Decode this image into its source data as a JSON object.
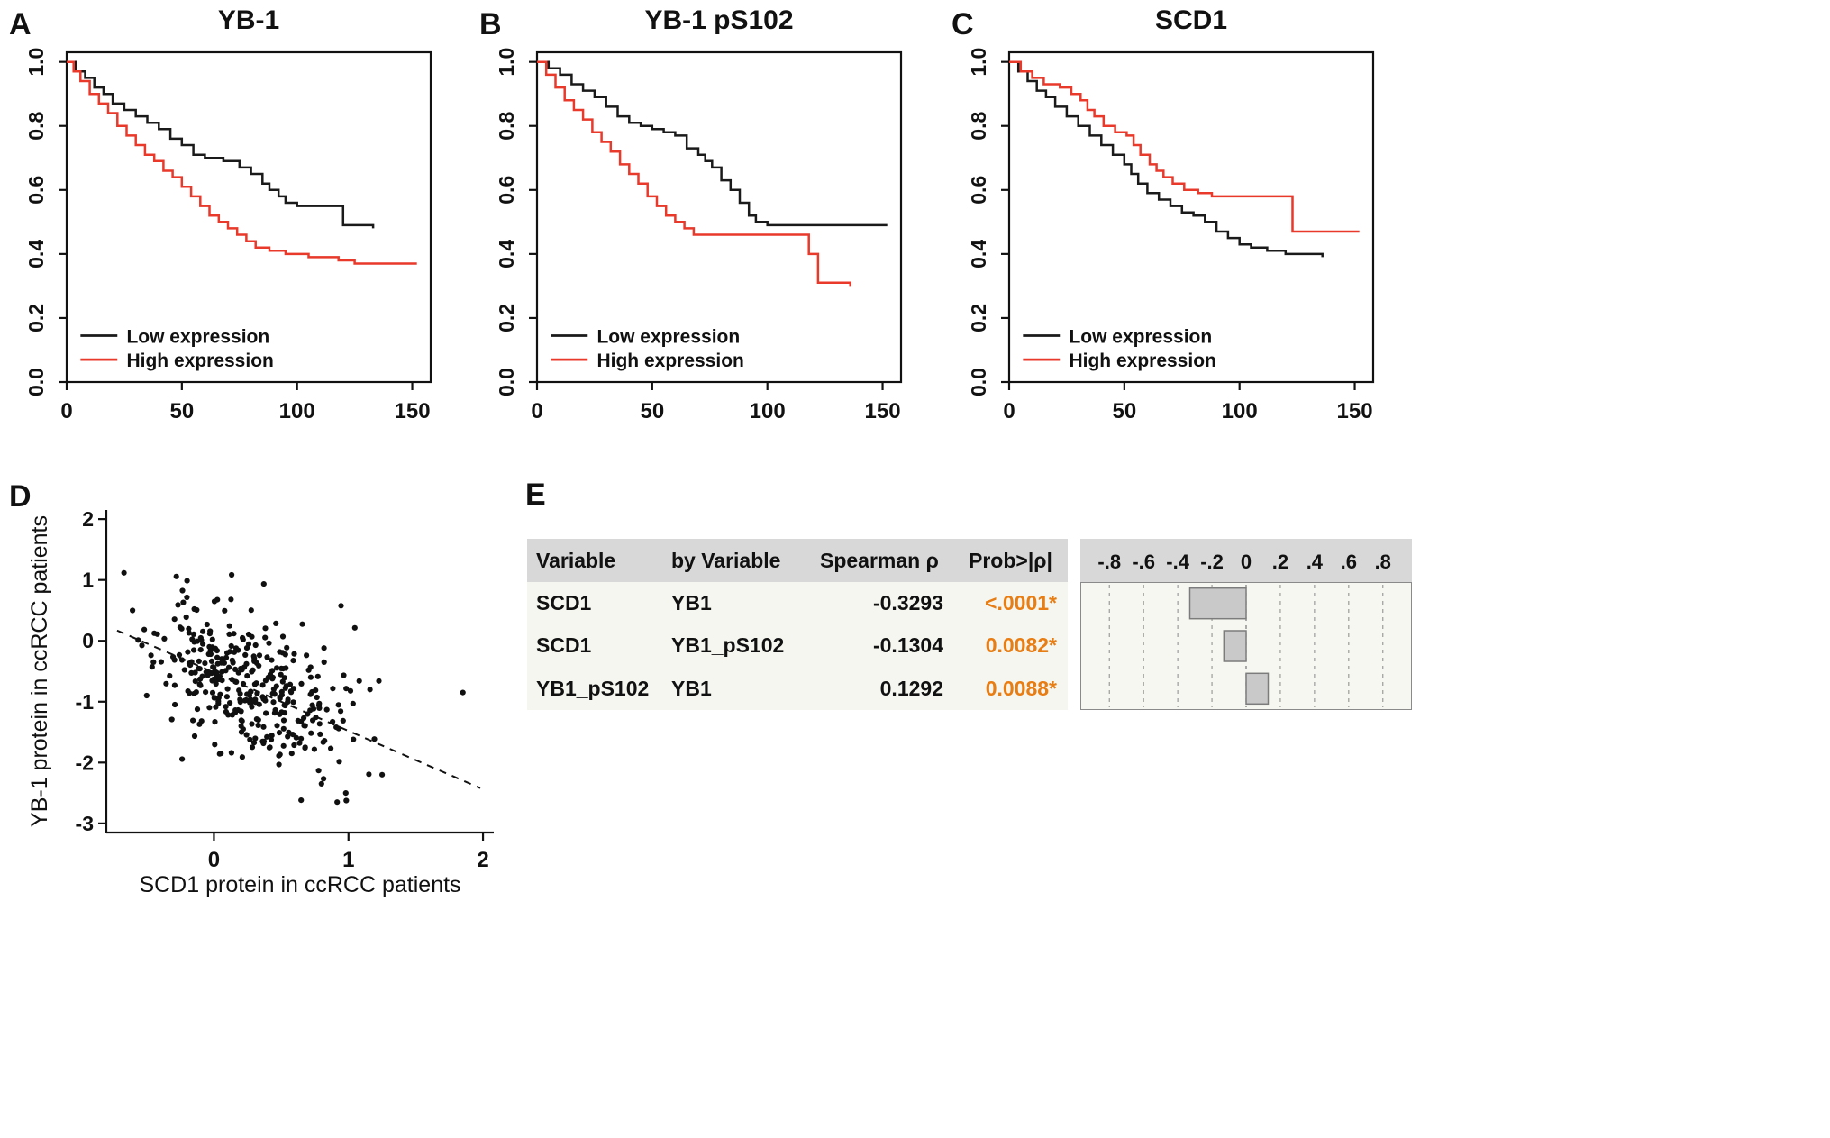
{
  "figure": {
    "background": "#ffffff",
    "panels": {
      "a": {
        "label": "A"
      },
      "b": {
        "label": "B"
      },
      "c": {
        "label": "C"
      },
      "d": {
        "label": "D"
      },
      "e": {
        "label": "E"
      }
    }
  },
  "colors": {
    "low_expression": "#1a1a1a",
    "high_expression": "#e8392b",
    "prob_highlight": "#e87d13",
    "bar_fill": "#c9c9c9",
    "bar_stroke": "#7c7c7c",
    "table_header_bg": "#d8d8d8",
    "table_body_bg": "#f6f6f0",
    "plot_area_bg": "#f7f7f1"
  },
  "chart_data": [
    {
      "id": "km-yb1",
      "type": "line",
      "render": "km-step",
      "title": "YB-1",
      "xlabel": "",
      "ylabel": "",
      "xlim": [
        0,
        158
      ],
      "ylim": [
        0,
        1.03
      ],
      "xticks": [
        0,
        50,
        100,
        150
      ],
      "yticks": [
        0.0,
        0.2,
        0.4,
        0.6,
        0.8,
        1.0
      ],
      "legend_position": "bottom-left",
      "series": [
        {
          "name": "Low expression",
          "color": "#1a1a1a",
          "points": [
            [
              0,
              1
            ],
            [
              4,
              0.97
            ],
            [
              8,
              0.95
            ],
            [
              12,
              0.92
            ],
            [
              16,
              0.9
            ],
            [
              20,
              0.87
            ],
            [
              25,
              0.85
            ],
            [
              30,
              0.83
            ],
            [
              35,
              0.81
            ],
            [
              40,
              0.79
            ],
            [
              45,
              0.76
            ],
            [
              50,
              0.74
            ],
            [
              55,
              0.71
            ],
            [
              60,
              0.7
            ],
            [
              68,
              0.69
            ],
            [
              75,
              0.67
            ],
            [
              80,
              0.65
            ],
            [
              85,
              0.62
            ],
            [
              88,
              0.6
            ],
            [
              92,
              0.58
            ],
            [
              95,
              0.56
            ],
            [
              100,
              0.55
            ],
            [
              118,
              0.55
            ],
            [
              120,
              0.49
            ],
            [
              133,
              0.48
            ]
          ]
        },
        {
          "name": "High expression",
          "color": "#e8392b",
          "points": [
            [
              0,
              1
            ],
            [
              3,
              0.97
            ],
            [
              6,
              0.94
            ],
            [
              10,
              0.9
            ],
            [
              14,
              0.87
            ],
            [
              18,
              0.84
            ],
            [
              22,
              0.8
            ],
            [
              26,
              0.77
            ],
            [
              30,
              0.74
            ],
            [
              34,
              0.71
            ],
            [
              38,
              0.69
            ],
            [
              42,
              0.66
            ],
            [
              46,
              0.64
            ],
            [
              50,
              0.61
            ],
            [
              54,
              0.58
            ],
            [
              58,
              0.55
            ],
            [
              62,
              0.52
            ],
            [
              66,
              0.5
            ],
            [
              70,
              0.48
            ],
            [
              74,
              0.46
            ],
            [
              78,
              0.44
            ],
            [
              82,
              0.42
            ],
            [
              88,
              0.41
            ],
            [
              95,
              0.4
            ],
            [
              105,
              0.39
            ],
            [
              118,
              0.38
            ],
            [
              125,
              0.37
            ],
            [
              152,
              0.37
            ]
          ]
        }
      ]
    },
    {
      "id": "km-yb1-ps102",
      "type": "line",
      "render": "km-step",
      "title": "YB-1 pS102",
      "xlabel": "",
      "ylabel": "",
      "xlim": [
        0,
        158
      ],
      "ylim": [
        0,
        1.03
      ],
      "xticks": [
        0,
        50,
        100,
        150
      ],
      "yticks": [
        0.0,
        0.2,
        0.4,
        0.6,
        0.8,
        1.0
      ],
      "legend_position": "bottom-left",
      "series": [
        {
          "name": "Low expression",
          "color": "#1a1a1a",
          "points": [
            [
              0,
              1
            ],
            [
              5,
              0.98
            ],
            [
              10,
              0.96
            ],
            [
              15,
              0.93
            ],
            [
              20,
              0.91
            ],
            [
              25,
              0.89
            ],
            [
              30,
              0.86
            ],
            [
              35,
              0.83
            ],
            [
              40,
              0.81
            ],
            [
              45,
              0.8
            ],
            [
              50,
              0.79
            ],
            [
              55,
              0.78
            ],
            [
              60,
              0.77
            ],
            [
              65,
              0.73
            ],
            [
              70,
              0.71
            ],
            [
              73,
              0.69
            ],
            [
              76,
              0.67
            ],
            [
              80,
              0.63
            ],
            [
              84,
              0.6
            ],
            [
              88,
              0.56
            ],
            [
              92,
              0.52
            ],
            [
              95,
              0.5
            ],
            [
              100,
              0.49
            ],
            [
              152,
              0.49
            ]
          ]
        },
        {
          "name": "High expression",
          "color": "#e8392b",
          "points": [
            [
              0,
              1
            ],
            [
              4,
              0.96
            ],
            [
              8,
              0.92
            ],
            [
              12,
              0.88
            ],
            [
              16,
              0.85
            ],
            [
              20,
              0.82
            ],
            [
              24,
              0.78
            ],
            [
              28,
              0.75
            ],
            [
              32,
              0.72
            ],
            [
              36,
              0.68
            ],
            [
              40,
              0.65
            ],
            [
              44,
              0.62
            ],
            [
              48,
              0.58
            ],
            [
              52,
              0.55
            ],
            [
              56,
              0.52
            ],
            [
              60,
              0.5
            ],
            [
              64,
              0.48
            ],
            [
              68,
              0.46
            ],
            [
              112,
              0.46
            ],
            [
              118,
              0.4
            ],
            [
              122,
              0.31
            ],
            [
              136,
              0.3
            ]
          ]
        }
      ]
    },
    {
      "id": "km-scd1",
      "type": "line",
      "render": "km-step",
      "title": "SCD1",
      "xlabel": "",
      "ylabel": "",
      "xlim": [
        0,
        158
      ],
      "ylim": [
        0,
        1.03
      ],
      "xticks": [
        0,
        50,
        100,
        150
      ],
      "yticks": [
        0.0,
        0.2,
        0.4,
        0.6,
        0.8,
        1.0
      ],
      "legend_position": "bottom-left",
      "series": [
        {
          "name": "Low expression",
          "color": "#1a1a1a",
          "points": [
            [
              0,
              1
            ],
            [
              4,
              0.97
            ],
            [
              8,
              0.94
            ],
            [
              12,
              0.91
            ],
            [
              16,
              0.89
            ],
            [
              20,
              0.86
            ],
            [
              25,
              0.83
            ],
            [
              30,
              0.8
            ],
            [
              35,
              0.77
            ],
            [
              40,
              0.74
            ],
            [
              45,
              0.71
            ],
            [
              50,
              0.68
            ],
            [
              53,
              0.65
            ],
            [
              56,
              0.62
            ],
            [
              60,
              0.59
            ],
            [
              65,
              0.57
            ],
            [
              70,
              0.55
            ],
            [
              75,
              0.53
            ],
            [
              80,
              0.52
            ],
            [
              85,
              0.5
            ],
            [
              90,
              0.47
            ],
            [
              95,
              0.45
            ],
            [
              100,
              0.43
            ],
            [
              105,
              0.42
            ],
            [
              112,
              0.41
            ],
            [
              120,
              0.4
            ],
            [
              136,
              0.39
            ]
          ]
        },
        {
          "name": "High expression",
          "color": "#e8392b",
          "points": [
            [
              0,
              1
            ],
            [
              5,
              0.97
            ],
            [
              10,
              0.95
            ],
            [
              15,
              0.93
            ],
            [
              22,
              0.92
            ],
            [
              27,
              0.9
            ],
            [
              31,
              0.88
            ],
            [
              34,
              0.85
            ],
            [
              37,
              0.83
            ],
            [
              41,
              0.8
            ],
            [
              46,
              0.78
            ],
            [
              51,
              0.77
            ],
            [
              54,
              0.74
            ],
            [
              57,
              0.71
            ],
            [
              61,
              0.68
            ],
            [
              64,
              0.66
            ],
            [
              67,
              0.64
            ],
            [
              71,
              0.62
            ],
            [
              76,
              0.6
            ],
            [
              82,
              0.59
            ],
            [
              88,
              0.58
            ],
            [
              120,
              0.58
            ],
            [
              123,
              0.47
            ],
            [
              152,
              0.47
            ]
          ]
        }
      ]
    },
    {
      "id": "scatter-scd1-vs-yb1",
      "type": "scatter",
      "title": "",
      "xlabel": "SCD1 protein in ccRCC patients",
      "ylabel": "YB-1 protein in ccRCC patients",
      "xlim": [
        -0.8,
        2.08
      ],
      "ylim": [
        -3.15,
        2.15
      ],
      "xticks": [
        0,
        1,
        2
      ],
      "yticks": [
        -3,
        -2,
        -1,
        0,
        1,
        2
      ],
      "point_cloud": {
        "seed": 11,
        "n": 360,
        "x_mean": 0.24,
        "x_sd": 0.34,
        "slope": -0.96,
        "intercept": -0.52,
        "noise_sd": 0.58
      },
      "outliers": [
        [
          1.85,
          -0.85
        ],
        [
          1.08,
          -0.66
        ],
        [
          1.16,
          -0.8
        ],
        [
          0.98,
          -2.5
        ],
        [
          1.25,
          -2.2
        ],
        [
          -0.45,
          -0.35
        ],
        [
          -0.5,
          -0.9
        ]
      ],
      "trend_line": {
        "x1": -0.72,
        "y1": 0.17,
        "x2": 1.98,
        "y2": -2.42,
        "style": "dashed"
      }
    },
    {
      "id": "spearman-bars",
      "type": "bar",
      "orientation": "horizontal",
      "categories": [
        "SCD1 vs YB1",
        "SCD1 vs YB1_pS102",
        "YB1_pS102 vs YB1"
      ],
      "values": [
        -0.3293,
        -0.1304,
        0.1292
      ],
      "xlim": [
        -0.97,
        0.97
      ],
      "ticks": [
        -0.8,
        -0.6,
        -0.4,
        -0.2,
        0,
        0.2,
        0.4,
        0.6,
        0.8
      ],
      "tick_labels": [
        "-.8",
        "-.6",
        "-.4",
        "-.2",
        "0",
        ".2",
        ".4",
        ".6",
        ".8"
      ]
    }
  ],
  "table": {
    "headers": [
      "Variable",
      "by Variable",
      "Spearman ρ",
      "Prob>|ρ|"
    ],
    "rows": [
      {
        "variable": "SCD1",
        "by_variable": "YB1",
        "spearman": "-0.3293",
        "prob": "<.0001*"
      },
      {
        "variable": "SCD1",
        "by_variable": "YB1_pS102",
        "spearman": "-0.1304",
        "prob": "0.0082*"
      },
      {
        "variable": "YB1_pS102",
        "by_variable": "YB1",
        "spearman": "0.1292",
        "prob": "0.0088*"
      }
    ]
  }
}
